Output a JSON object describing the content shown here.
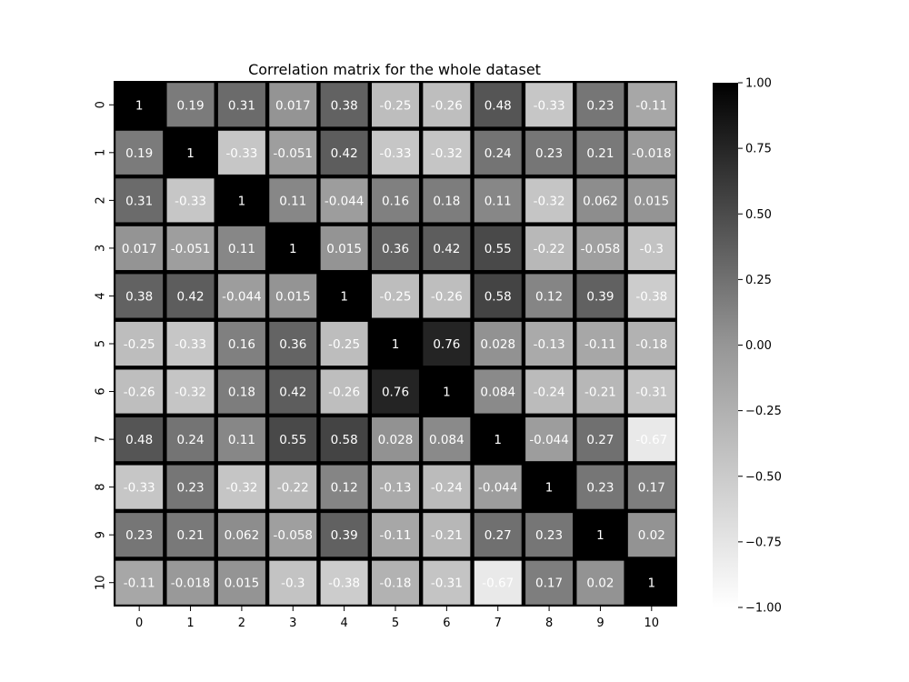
{
  "chart_data": {
    "type": "heatmap",
    "title": "Correlation matrix for the whole dataset",
    "xlabel": "",
    "ylabel": "",
    "x_categories": [
      "0",
      "1",
      "2",
      "3",
      "4",
      "5",
      "6",
      "7",
      "8",
      "9",
      "10"
    ],
    "y_categories": [
      "0",
      "1",
      "2",
      "3",
      "4",
      "5",
      "6",
      "7",
      "8",
      "9",
      "10"
    ],
    "values": [
      [
        "1",
        "0.19",
        "0.31",
        "0.017",
        "0.38",
        "-0.25",
        "-0.26",
        "0.48",
        "-0.33",
        "0.23",
        "-0.11"
      ],
      [
        "0.19",
        "1",
        "-0.33",
        "-0.051",
        "0.42",
        "-0.33",
        "-0.32",
        "0.24",
        "0.23",
        "0.21",
        "-0.018"
      ],
      [
        "0.31",
        "-0.33",
        "1",
        "0.11",
        "-0.044",
        "0.16",
        "0.18",
        "0.11",
        "-0.32",
        "0.062",
        "0.015"
      ],
      [
        "0.017",
        "-0.051",
        "0.11",
        "1",
        "0.015",
        "0.36",
        "0.42",
        "0.55",
        "-0.22",
        "-0.058",
        "-0.3"
      ],
      [
        "0.38",
        "0.42",
        "-0.044",
        "0.015",
        "1",
        "-0.25",
        "-0.26",
        "0.58",
        "0.12",
        "0.39",
        "-0.38"
      ],
      [
        "-0.25",
        "-0.33",
        "0.16",
        "0.36",
        "-0.25",
        "1",
        "0.76",
        "0.028",
        "-0.13",
        "-0.11",
        "-0.18"
      ],
      [
        "-0.26",
        "-0.32",
        "0.18",
        "0.42",
        "-0.26",
        "0.76",
        "1",
        "0.084",
        "-0.24",
        "-0.21",
        "-0.31"
      ],
      [
        "0.48",
        "0.24",
        "0.11",
        "0.55",
        "0.58",
        "0.028",
        "0.084",
        "1",
        "-0.044",
        "0.27",
        "-0.67"
      ],
      [
        "-0.33",
        "0.23",
        "-0.32",
        "-0.22",
        "0.12",
        "-0.13",
        "-0.24",
        "-0.044",
        "1",
        "0.23",
        "0.17"
      ],
      [
        "0.23",
        "0.21",
        "0.062",
        "-0.058",
        "0.39",
        "-0.11",
        "-0.21",
        "0.27",
        "0.23",
        "1",
        "0.02"
      ],
      [
        "-0.11",
        "-0.018",
        "0.015",
        "-0.3",
        "-0.38",
        "-0.18",
        "-0.31",
        "-0.67",
        "0.17",
        "0.02",
        "1"
      ]
    ],
    "vmin": -1,
    "vmax": 1,
    "colormap": "Greys",
    "colorbar": {
      "ticks": [
        "1.00",
        "0.75",
        "0.50",
        "0.25",
        "0.00",
        "−0.25",
        "−0.50",
        "−0.75",
        "−1.00"
      ],
      "tick_values": [
        1,
        0.75,
        0.5,
        0.25,
        0,
        -0.25,
        -0.5,
        -0.75,
        -1
      ]
    },
    "annotations": true,
    "cell_gap_color": "#000000",
    "low_color": "#ffffff",
    "high_color": "#000000",
    "annotation_color": "#ffffff"
  }
}
